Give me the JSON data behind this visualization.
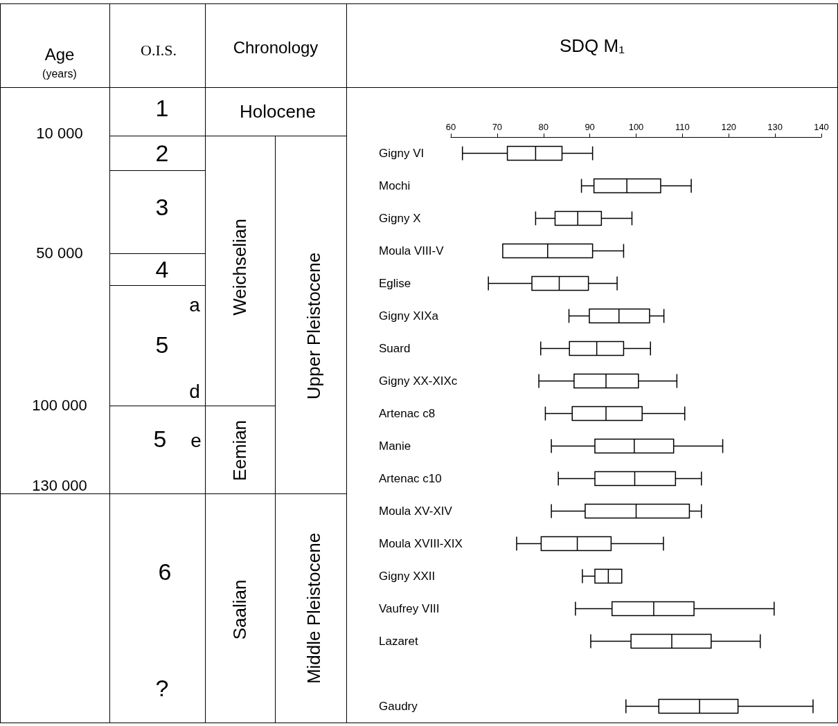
{
  "chart_data": [
    {
      "type": "other",
      "annotations": [
        "Age",
        "(years)",
        "O.I.S.",
        "Chronology",
        "10 000",
        "50 000",
        "100 000",
        "130 000",
        "1",
        "2",
        "3",
        "4",
        "a",
        "5",
        "d",
        "5",
        "e",
        "6",
        "?",
        "Holocene",
        "Weichselian",
        "Eemian",
        "Saalian",
        "Upper Pleistocene",
        "Middle Pleistocene"
      ]
    },
    {
      "type": "box",
      "orientation": "horizontal",
      "title": "SDQ M₁",
      "color": "#000000",
      "grid": false,
      "categories": [
        "Gigny VI",
        "Mochi",
        "Gigny X",
        "Moula VIII-V",
        "Eglise",
        "Gigny XIXa",
        "Suard",
        "Gigny XX-XIXc",
        "Artenac c8",
        "Manie",
        "Artenac c10",
        "Moula XV-XIV",
        "Moula XVIII-XIX",
        "Gigny XXII",
        "Vaufrey VIII",
        "Lazaret",
        null,
        "Gaudry"
      ],
      "xlim": [
        60,
        140
      ],
      "xticks": [
        60,
        70,
        80,
        90,
        100,
        110,
        120,
        130,
        140
      ],
      "boxes": [
        {
          "low": 62.5,
          "q1": 72.2,
          "median": 78.3,
          "q3": 84.0,
          "high": 90.6
        },
        {
          "low": 88.2,
          "q1": 90.9,
          "median": 98.0,
          "q3": 105.3,
          "high": 111.9
        },
        {
          "low": 78.3,
          "q1": 82.5,
          "median": 87.4,
          "q3": 92.5,
          "high": 99.1
        },
        {
          "low": 71.2,
          "q1": 71.2,
          "median": 80.9,
          "q3": 90.6,
          "high": 97.3
        },
        {
          "low": 68.1,
          "q1": 77.5,
          "median": 83.4,
          "q3": 89.7,
          "high": 95.9
        },
        {
          "low": 85.5,
          "q1": 89.9,
          "median": 96.3,
          "q3": 102.9,
          "high": 106.0
        },
        {
          "low": 79.4,
          "q1": 85.6,
          "median": 91.5,
          "q3": 97.3,
          "high": 103.1
        },
        {
          "low": 79.0,
          "q1": 86.6,
          "median": 93.5,
          "q3": 100.5,
          "high": 108.8
        },
        {
          "low": 80.4,
          "q1": 86.2,
          "median": 93.5,
          "q3": 101.3,
          "high": 110.5
        },
        {
          "low": 81.7,
          "q1": 91.1,
          "median": 99.6,
          "q3": 108.1,
          "high": 118.7
        },
        {
          "low": 83.2,
          "q1": 91.1,
          "median": 99.7,
          "q3": 108.5,
          "high": 114.1
        },
        {
          "low": 81.7,
          "q1": 89.0,
          "median": 100.0,
          "q3": 111.5,
          "high": 114.1
        },
        {
          "low": 74.2,
          "q1": 79.5,
          "median": 87.3,
          "q3": 94.6,
          "high": 105.9
        },
        {
          "low": 88.4,
          "q1": 91.1,
          "median": 94.0,
          "q3": 96.9,
          "high": 96.9
        },
        {
          "low": 86.9,
          "q1": 94.8,
          "median": 103.8,
          "q3": 112.5,
          "high": 129.8
        },
        {
          "low": 90.2,
          "q1": 98.9,
          "median": 107.7,
          "q3": 116.2,
          "high": 126.8
        },
        null,
        {
          "low": 97.8,
          "q1": 104.9,
          "median": 113.7,
          "q3": 122.0,
          "high": 138.2
        }
      ]
    }
  ]
}
